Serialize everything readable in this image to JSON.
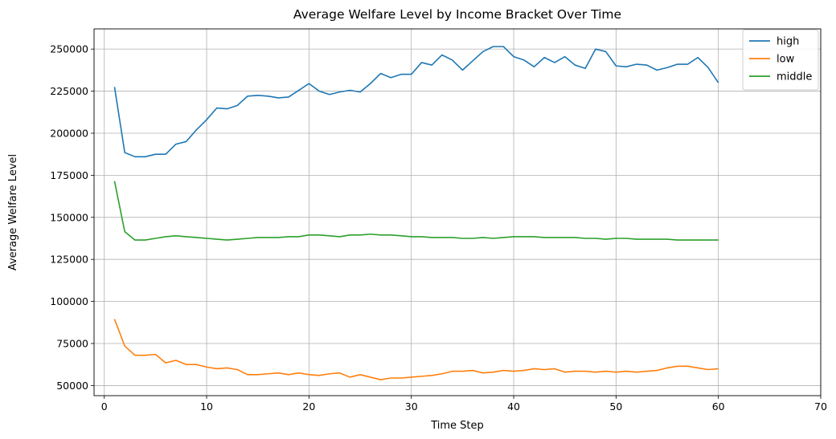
{
  "chart_data": {
    "type": "line",
    "title": "Average Welfare Level by Income Bracket Over Time",
    "xlabel": "Time Step",
    "ylabel": "Average Welfare Level",
    "xlim": [
      -1,
      70
    ],
    "ylim": [
      44000,
      262000
    ],
    "xticks": [
      0,
      10,
      20,
      30,
      40,
      50,
      60,
      70
    ],
    "xtick_labels": [
      "0",
      "10",
      "20",
      "30",
      "40",
      "50",
      "60",
      "70"
    ],
    "yticks": [
      50000,
      75000,
      100000,
      125000,
      150000,
      175000,
      200000,
      225000,
      250000
    ],
    "ytick_labels": [
      "50000",
      "75000",
      "100000",
      "125000",
      "150000",
      "175000",
      "200000",
      "225000",
      "250000"
    ],
    "grid": true,
    "legend_position": "top-right",
    "x": [
      1,
      2,
      3,
      4,
      5,
      6,
      7,
      8,
      9,
      10,
      11,
      12,
      13,
      14,
      15,
      16,
      17,
      18,
      19,
      20,
      21,
      22,
      23,
      24,
      25,
      26,
      27,
      28,
      29,
      30,
      31,
      32,
      33,
      34,
      35,
      36,
      37,
      38,
      39,
      40,
      41,
      42,
      43,
      44,
      45,
      46,
      47,
      48,
      49,
      50,
      51,
      52,
      53,
      54,
      55,
      56,
      57,
      58,
      59,
      60
    ],
    "series": [
      {
        "name": "high",
        "color": "#1f77b4",
        "values": [
          227500,
          188500,
          186000,
          186000,
          187500,
          187500,
          193500,
          195000,
          202000,
          208000,
          215000,
          214500,
          216500,
          222000,
          222500,
          222000,
          221000,
          221500,
          225500,
          229500,
          225000,
          223000,
          224500,
          225500,
          224500,
          229500,
          235500,
          233000,
          235000,
          235000,
          242000,
          240500,
          246500,
          243500,
          237500,
          243000,
          248500,
          251500,
          251500,
          245500,
          243500,
          239500,
          245000,
          242000,
          245500,
          240500,
          238500,
          250000,
          248500,
          240000,
          239500,
          241000,
          240500,
          237500,
          239000,
          241000,
          241000,
          245000,
          239000,
          230000
        ]
      },
      {
        "name": "low",
        "color": "#ff7f0e",
        "values": [
          89500,
          73500,
          68000,
          68000,
          68500,
          63500,
          65000,
          62500,
          62500,
          61000,
          60000,
          60500,
          59500,
          56500,
          56500,
          57000,
          57500,
          56500,
          57500,
          56500,
          56000,
          57000,
          57500,
          55000,
          56500,
          55000,
          53500,
          54500,
          54500,
          55000,
          55500,
          56000,
          57000,
          58500,
          58500,
          59000,
          57500,
          58000,
          59000,
          58500,
          59000,
          60000,
          59500,
          60000,
          58000,
          58500,
          58500,
          58000,
          58500,
          58000,
          58500,
          58000,
          58500,
          59000,
          60500,
          61500,
          61500,
          60500,
          59500,
          60000
        ]
      },
      {
        "name": "middle",
        "color": "#2ca02c",
        "values": [
          171500,
          141500,
          136500,
          136500,
          137500,
          138500,
          139000,
          138500,
          138000,
          137500,
          137000,
          136500,
          137000,
          137500,
          138000,
          138000,
          138000,
          138500,
          138500,
          139500,
          139500,
          139000,
          138500,
          139500,
          139500,
          140000,
          139500,
          139500,
          139000,
          138500,
          138500,
          138000,
          138000,
          138000,
          137500,
          137500,
          138000,
          137500,
          138000,
          138500,
          138500,
          138500,
          138000,
          138000,
          138000,
          138000,
          137500,
          137500,
          137000,
          137500,
          137500,
          137000,
          137000,
          137000,
          137000,
          136500,
          136500,
          136500,
          136500,
          136500
        ]
      }
    ]
  }
}
